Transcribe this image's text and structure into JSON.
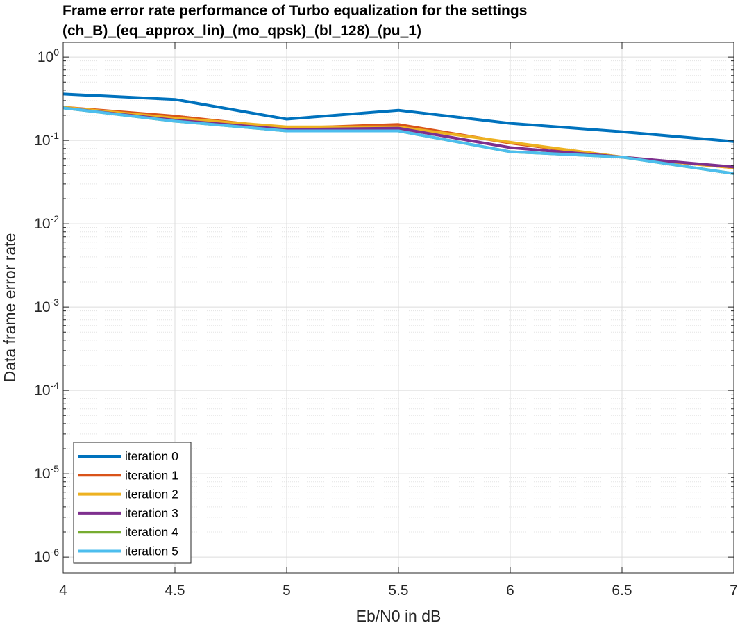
{
  "chart_data": {
    "type": "line",
    "title_line1": "Frame error rate performance of Turbo equalization for the settings",
    "title_line2": "(ch_B)_(eq_approx_lin)_(mo_qpsk)_(bl_128)_(pu_1)",
    "xlabel": "Eb/N0 in dB",
    "ylabel": "Data frame error rate",
    "yscale": "log",
    "xlim": [
      4,
      7
    ],
    "ylim": [
      1e-06,
      1.5
    ],
    "x_ticks": [
      "4",
      "4.5",
      "5",
      "5.5",
      "6",
      "6.5",
      "7"
    ],
    "y_ticks": [
      {
        "base": "10",
        "exp": "0"
      },
      {
        "base": "10",
        "exp": "-1"
      },
      {
        "base": "10",
        "exp": "-2"
      },
      {
        "base": "10",
        "exp": "-3"
      },
      {
        "base": "10",
        "exp": "-4"
      },
      {
        "base": "10",
        "exp": "-5"
      },
      {
        "base": "10",
        "exp": "-6"
      }
    ],
    "grid": true,
    "minor_grid": true,
    "legend_position": "bottom-left",
    "x": [
      4,
      4.5,
      5,
      5.5,
      6,
      6.5,
      7
    ],
    "series": [
      {
        "name": "iteration 0",
        "color": "#0072BD",
        "values": [
          0.36,
          0.31,
          0.18,
          0.23,
          0.16,
          0.127,
          0.097
        ]
      },
      {
        "name": "iteration 1",
        "color": "#D95319",
        "values": [
          0.25,
          0.195,
          0.14,
          0.155,
          0.093,
          0.063,
          0.047
        ]
      },
      {
        "name": "iteration 2",
        "color": "#EDB120",
        "values": [
          0.25,
          0.185,
          0.145,
          0.145,
          0.095,
          0.063,
          0.047
        ]
      },
      {
        "name": "iteration 3",
        "color": "#7E2F8E",
        "values": [
          0.245,
          0.175,
          0.135,
          0.14,
          0.082,
          0.063,
          0.048
        ]
      },
      {
        "name": "iteration 4",
        "color": "#77AC30",
        "values": [
          0.245,
          0.17,
          0.13,
          0.13,
          0.073,
          0.063,
          0.04
        ]
      },
      {
        "name": "iteration 5",
        "color": "#4DBEEE",
        "values": [
          0.245,
          0.17,
          0.13,
          0.13,
          0.073,
          0.063,
          0.04
        ]
      }
    ]
  }
}
